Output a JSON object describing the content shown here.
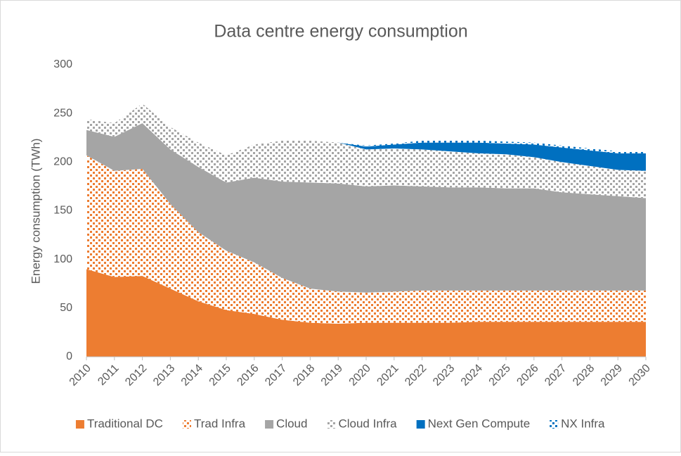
{
  "chart_data": {
    "type": "stacked_area",
    "title": "Data centre energy consumption",
    "y_label": "Energy consumption (TWh)",
    "categories": [
      "2010",
      "2011",
      "2012",
      "2013",
      "2014",
      "2015",
      "2016",
      "2017",
      "2018",
      "2019",
      "2020",
      "2021",
      "2022",
      "2023",
      "2024",
      "2025",
      "2026",
      "2027",
      "2028",
      "2029",
      "2030"
    ],
    "ylim": [
      0,
      300
    ],
    "yticks": [
      0,
      50,
      100,
      150,
      200,
      250,
      300
    ],
    "grid": false,
    "legend": "bottom",
    "series": [
      {
        "name": "Traditional DC",
        "color": "#ed7d31",
        "fill": "solid",
        "values": [
          90,
          82,
          83,
          70,
          57,
          48,
          44,
          38,
          35,
          34,
          35,
          35,
          35,
          35,
          36,
          36,
          36,
          36,
          36,
          36,
          36
        ]
      },
      {
        "name": "Trad Infra",
        "color": "#ed7d31",
        "fill": "pattern",
        "values": [
          117,
          109,
          110,
          87,
          71,
          61,
          53,
          43,
          35,
          33,
          31,
          32,
          33,
          33,
          32,
          32,
          32,
          32,
          32,
          32,
          32
        ]
      },
      {
        "name": "Cloud",
        "color": "#a5a5a5",
        "fill": "solid",
        "values": [
          26,
          35,
          47,
          56,
          67,
          70,
          87,
          99,
          109,
          111,
          109,
          109,
          107,
          106,
          106,
          105,
          105,
          101,
          99,
          97,
          95
        ]
      },
      {
        "name": "Cloud Infra",
        "color": "#a5a5a5",
        "fill": "pattern",
        "values": [
          11,
          14,
          20,
          23,
          25,
          28,
          34,
          42,
          43,
          42,
          38,
          38,
          38,
          37,
          35,
          35,
          32,
          31,
          29,
          27,
          28
        ]
      },
      {
        "name": "Next Gen Compute",
        "color": "#0070c0",
        "fill": "solid",
        "values": [
          0,
          0,
          0,
          0,
          0,
          0,
          0,
          0,
          0,
          0,
          3,
          4,
          7,
          9,
          11,
          11,
          13,
          15,
          16,
          17,
          18
        ]
      },
      {
        "name": "NX Infra",
        "color": "#0070c0",
        "fill": "pattern",
        "values": [
          0,
          0,
          0,
          0,
          0,
          0,
          0,
          0,
          0,
          0,
          1,
          1,
          2,
          2,
          2,
          2,
          2,
          2,
          2,
          2,
          2
        ]
      }
    ]
  }
}
